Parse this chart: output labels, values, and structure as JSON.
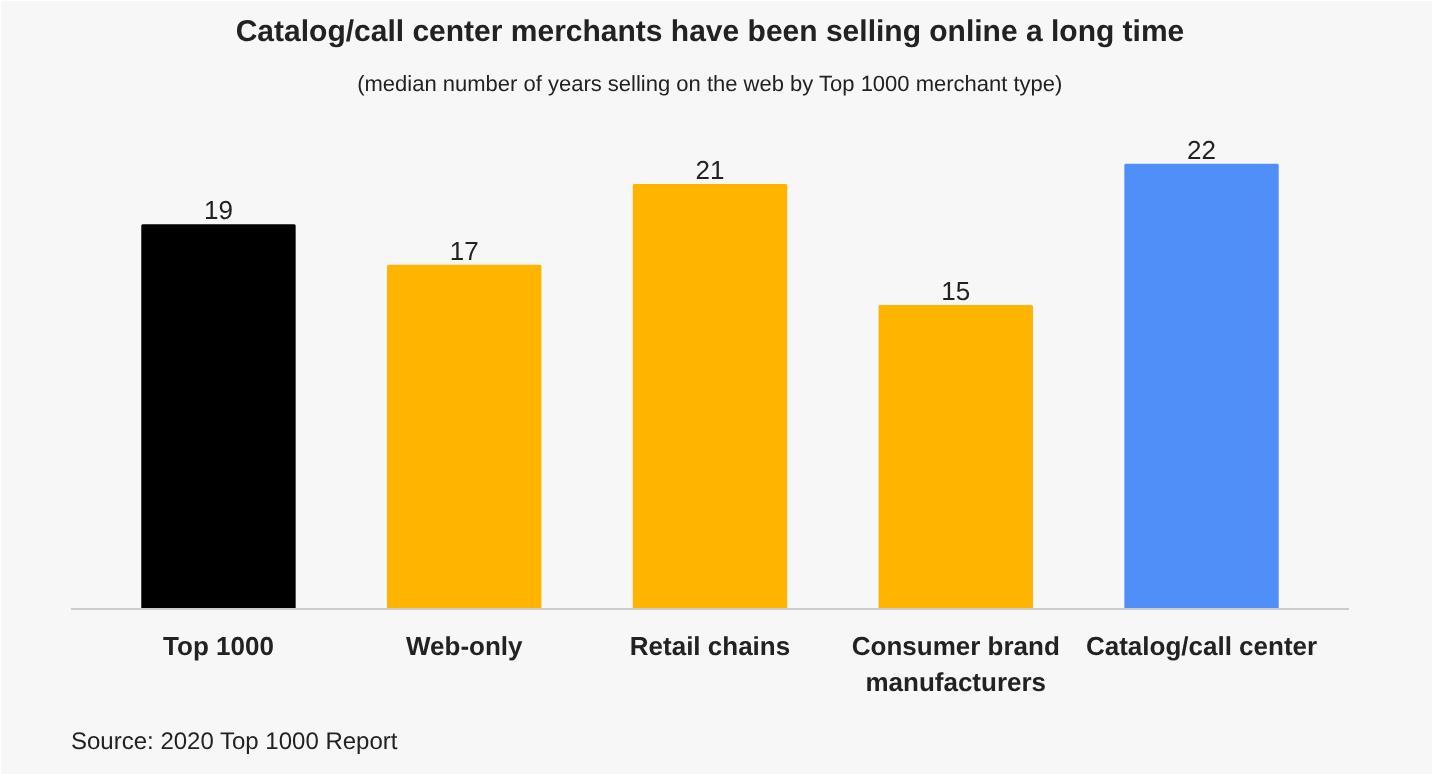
{
  "chart_data": {
    "type": "bar",
    "title": "Catalog/call center merchants have been selling online a long time",
    "subtitle": "(median number of years selling on the web by Top 1000 merchant type)",
    "categories": [
      "Top 1000",
      "Web-only",
      "Retail chains",
      "Consumer brand manufacturers",
      "Catalog/call center"
    ],
    "values": [
      19,
      17,
      21,
      15,
      22
    ],
    "colors": [
      "#000000",
      "#ffb400",
      "#ffb400",
      "#ffb400",
      "#4f8ff7"
    ],
    "data_labels": true,
    "grid": false,
    "annotations": [
      "Source: 2020 Top 1000 Report"
    ]
  }
}
